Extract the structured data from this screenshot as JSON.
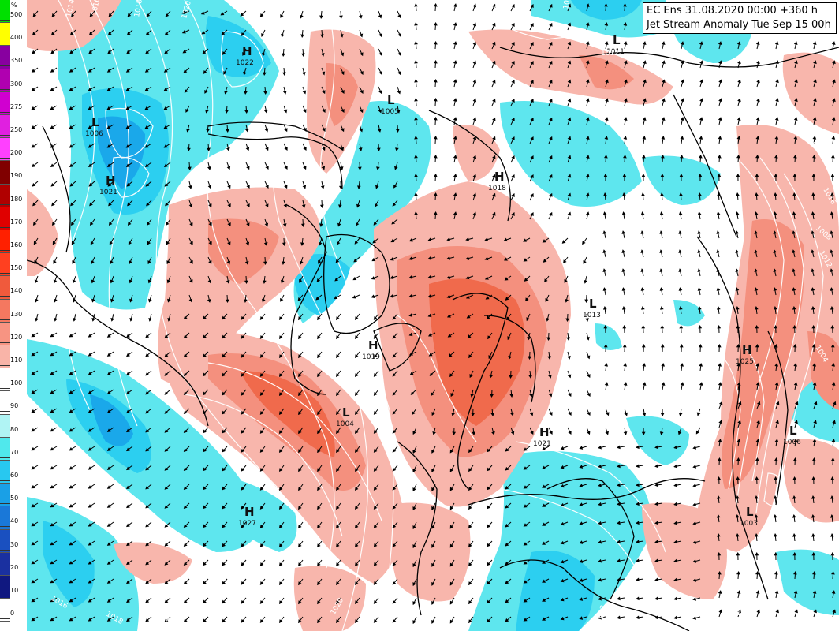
{
  "header": {
    "line1": "EC Ens 31.08.2020 00:00 +360 h",
    "line2": "Jet Stream Anomaly Tue Sep 15 00h"
  },
  "legend": {
    "unit": "%",
    "entries": [
      {
        "value": "500",
        "color": "#00e000"
      },
      {
        "value": "400",
        "color": "#ffff00"
      },
      {
        "value": "350",
        "color": "#8800a0"
      },
      {
        "value": "300",
        "color": "#b000b0"
      },
      {
        "value": "275",
        "color": "#d000d0"
      },
      {
        "value": "250",
        "color": "#e020e0"
      },
      {
        "value": "200",
        "color": "#ff40ff"
      },
      {
        "value": "190",
        "color": "#800000"
      },
      {
        "value": "180",
        "color": "#b00000"
      },
      {
        "value": "170",
        "color": "#e00000"
      },
      {
        "value": "160",
        "color": "#ff2000"
      },
      {
        "value": "150",
        "color": "#ff4020"
      },
      {
        "value": "140",
        "color": "#f05a3c"
      },
      {
        "value": "130",
        "color": "#f47860"
      },
      {
        "value": "120",
        "color": "#f79482"
      },
      {
        "value": "110",
        "color": "#f9b4a8"
      },
      {
        "value": "100",
        "color": "#ffffff"
      },
      {
        "value": "90",
        "color": "#ffffff"
      },
      {
        "value": "80",
        "color": "#b0f4f4"
      },
      {
        "value": "70",
        "color": "#50e8ec"
      },
      {
        "value": "60",
        "color": "#28c8f0"
      },
      {
        "value": "50",
        "color": "#1aa0e6"
      },
      {
        "value": "40",
        "color": "#1a78d8"
      },
      {
        "value": "30",
        "color": "#1a50c0"
      },
      {
        "value": "20",
        "color": "#1a30a0"
      },
      {
        "value": "10",
        "color": "#101880"
      },
      {
        "value": "0",
        "color": "#ffffff"
      }
    ]
  },
  "colors": {
    "red_light": "#f8b6ac",
    "red_mid": "#f4907e",
    "red_strong": "#f06a4c",
    "cyan_light": "#5ee6ee",
    "cyan_mid": "#2ccff0",
    "blue": "#1aa8ea",
    "blue_deep": "#1a86da"
  },
  "pressure_centers": [
    {
      "type": "H",
      "value": "1022"
    },
    {
      "type": "L",
      "value": "1005"
    },
    {
      "type": "L",
      "value": "1006"
    },
    {
      "type": "H",
      "value": "1021"
    },
    {
      "type": "L",
      "value": "1011"
    },
    {
      "type": "H",
      "value": "1018"
    },
    {
      "type": "L",
      "value": "1013"
    },
    {
      "type": "H",
      "value": "1019"
    },
    {
      "type": "L",
      "value": "1004"
    },
    {
      "type": "H",
      "value": "1021"
    },
    {
      "type": "H",
      "value": "1027"
    },
    {
      "type": "H",
      "value": "1025"
    },
    {
      "type": "L",
      "value": "1006"
    },
    {
      "type": "L",
      "value": "1003"
    }
  ],
  "isobar_labels": [
    "1014",
    "1016",
    "1018",
    "1020",
    "1020",
    "1018",
    "1016",
    "1014",
    "1012",
    "1016",
    "1018",
    "1020",
    "1020",
    "1016",
    "1012",
    "1014",
    "1012",
    "1008",
    "1008",
    "1008",
    "1012",
    "1016",
    "1004"
  ]
}
